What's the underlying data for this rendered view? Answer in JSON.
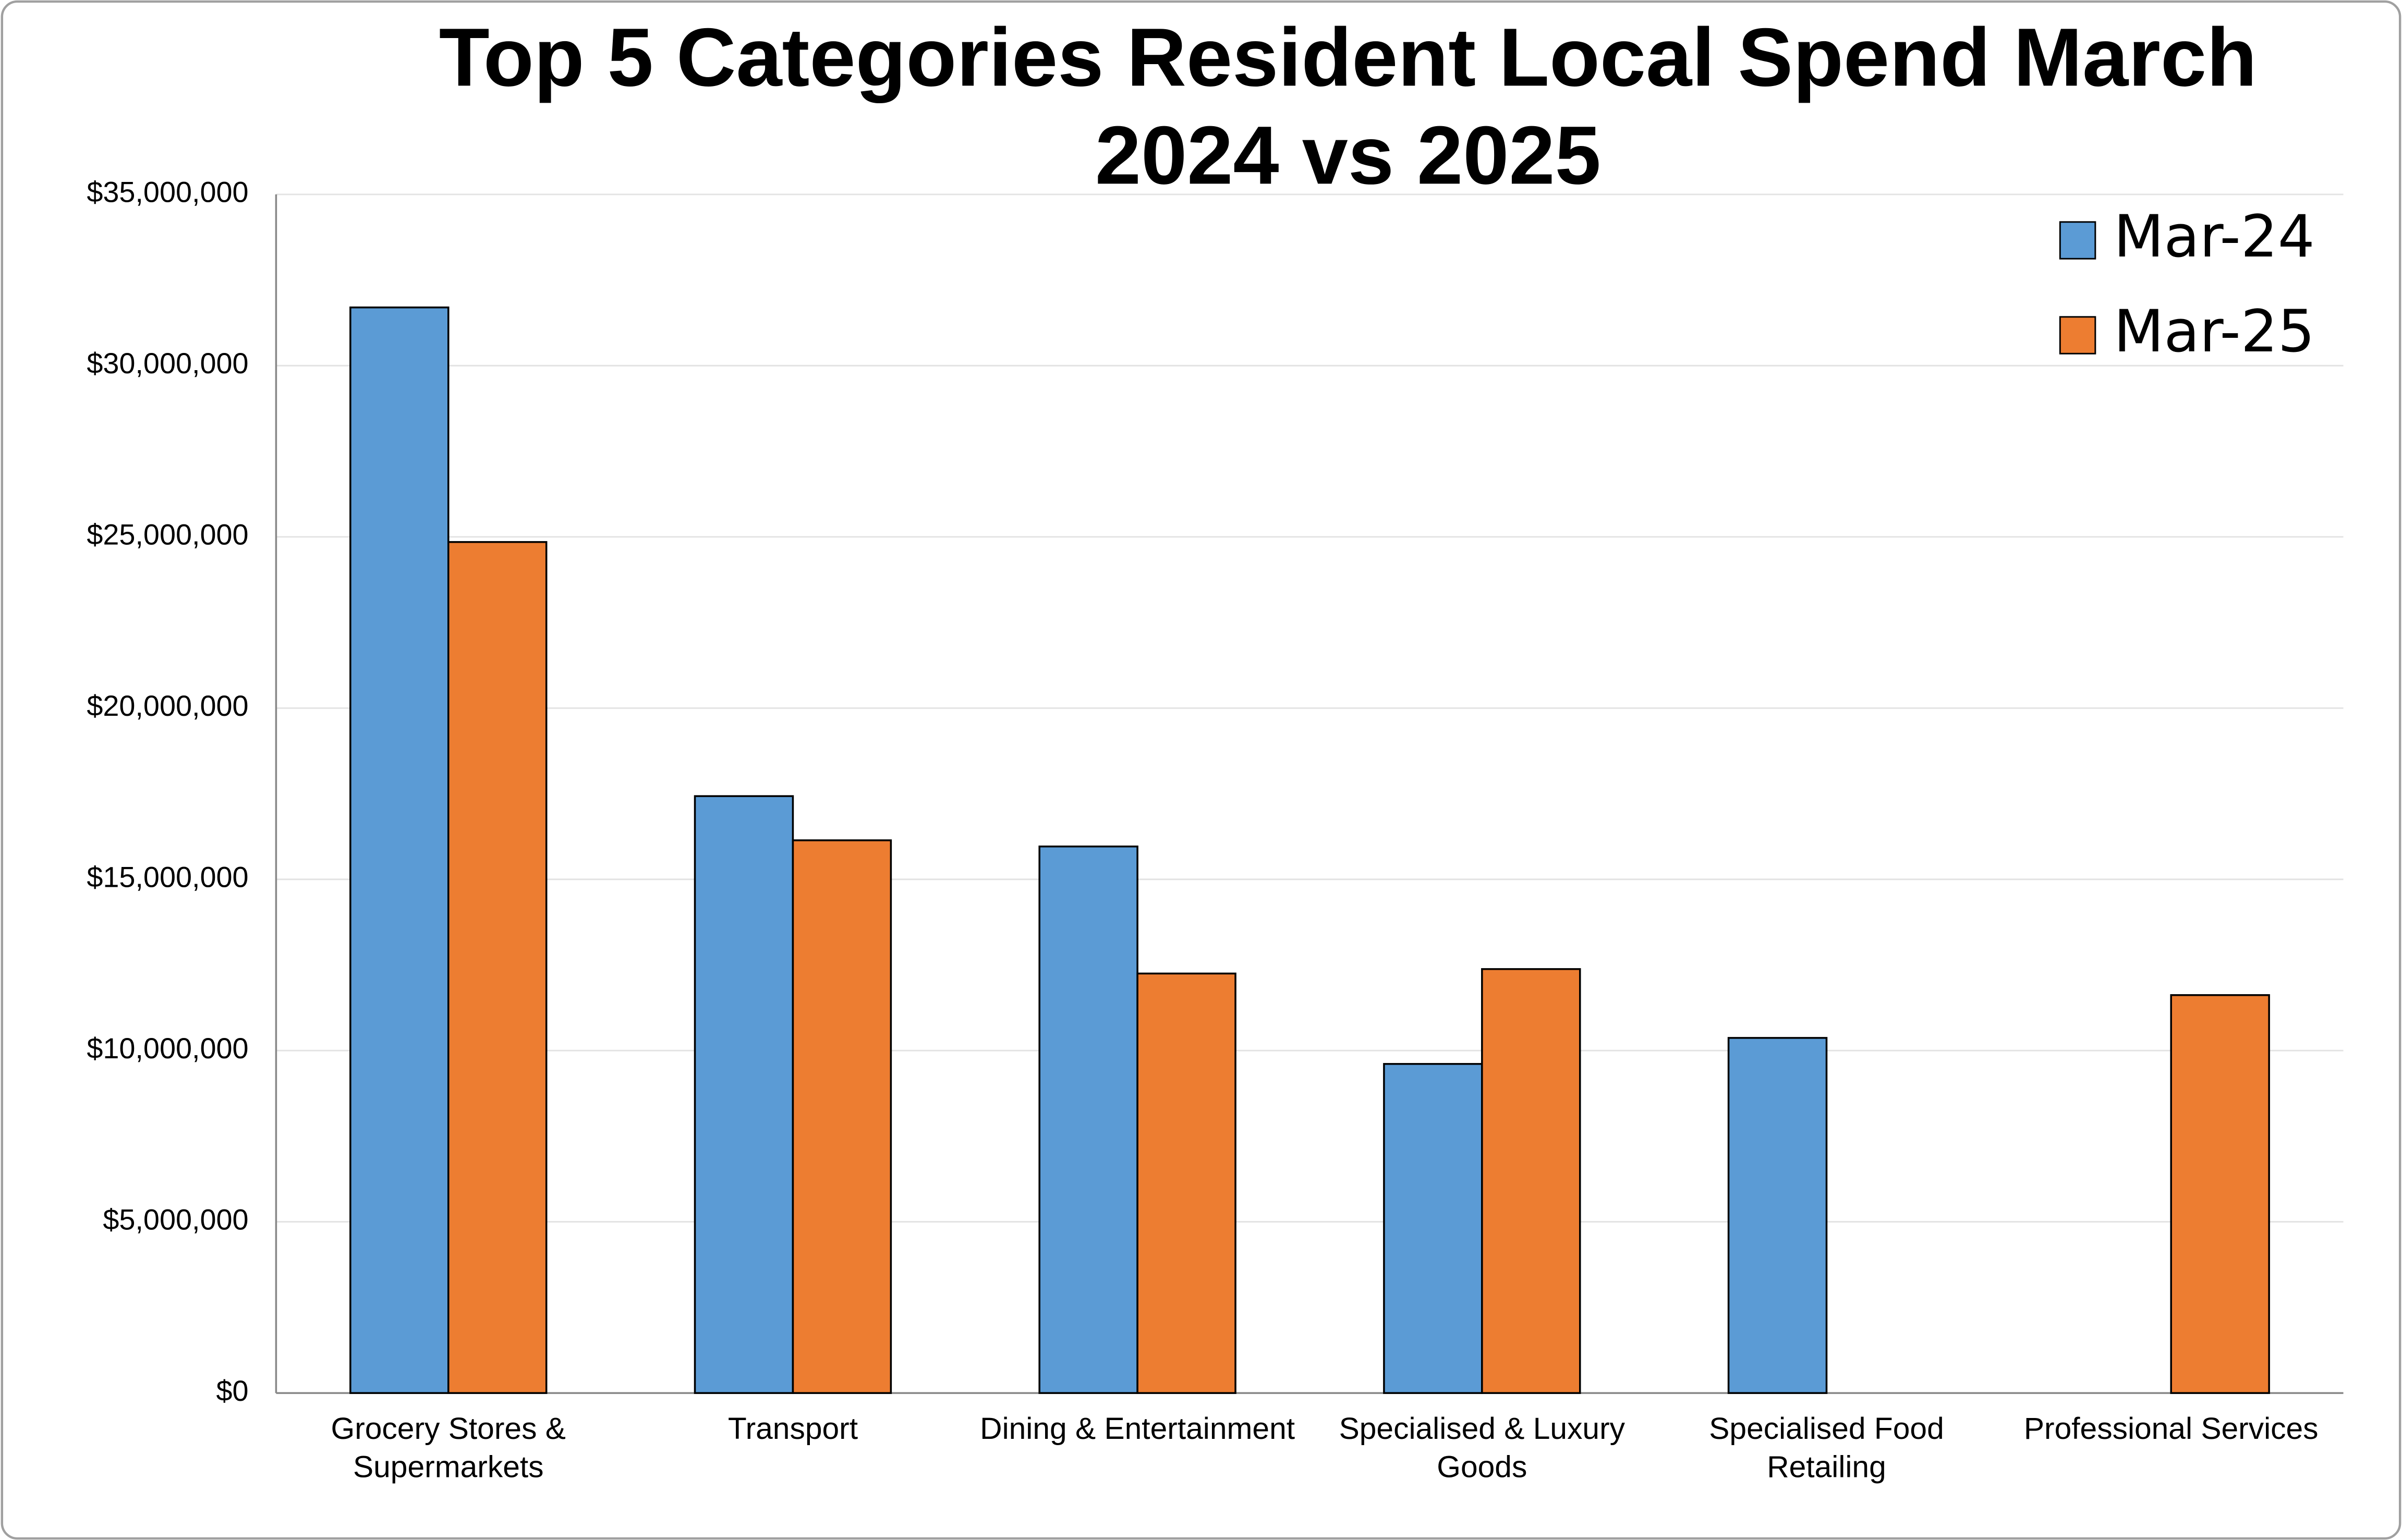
{
  "chart_data": {
    "type": "bar",
    "title": "Top 5 Categories Resident Local Spend March 2024 vs 2025",
    "categories": [
      "Grocery Stores & Supermarkets",
      "Transport",
      "Dining & Entertainment",
      "Specialised & Luxury Goods",
      "Specialised Food Retailing",
      "Professional Services"
    ],
    "series": [
      {
        "name": "Mar-24",
        "color": "#5b9bd5",
        "values": [
          31700000,
          17430000,
          15960000,
          9610000,
          10370000,
          null
        ]
      },
      {
        "name": "Mar-25",
        "color": "#ed7d31",
        "values": [
          24850000,
          16140000,
          12250000,
          12380000,
          null,
          11620000
        ]
      }
    ],
    "ylim": [
      0,
      35000000
    ],
    "yticks": [
      {
        "value": 0,
        "label": "$0"
      },
      {
        "value": 5000000,
        "label": "$5,000,000"
      },
      {
        "value": 10000000,
        "label": "$10,000,000"
      },
      {
        "value": 15000000,
        "label": "$15,000,000"
      },
      {
        "value": 20000000,
        "label": "$20,000,000"
      },
      {
        "value": 25000000,
        "label": "$25,000,000"
      },
      {
        "value": 30000000,
        "label": "$30,000,000"
      },
      {
        "value": 35000000,
        "label": "$35,000,000"
      }
    ],
    "grid": true,
    "legend": "top-right"
  }
}
